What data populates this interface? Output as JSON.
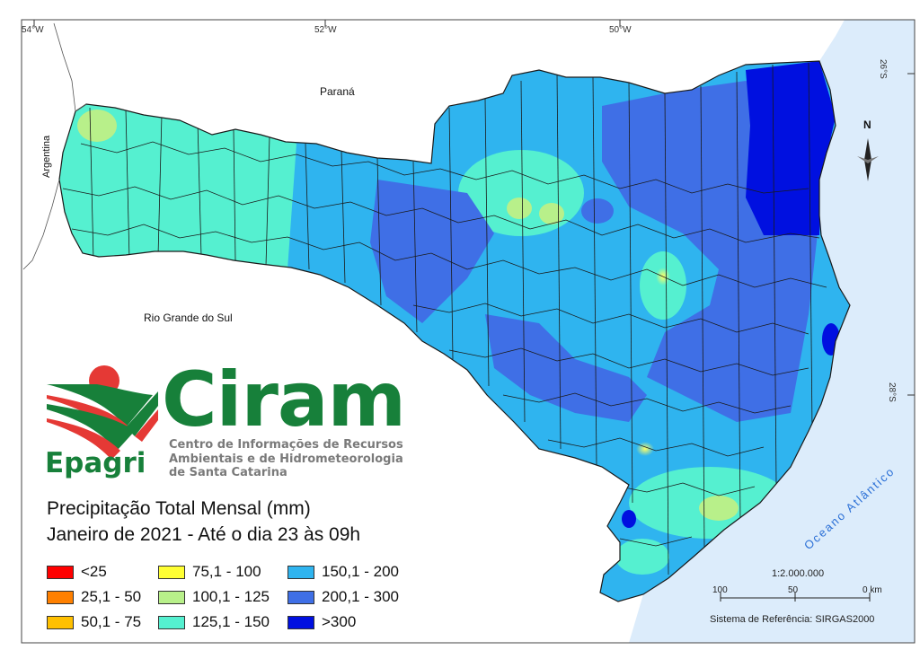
{
  "map": {
    "longitude_labels": [
      "54°W",
      "52°W",
      "50°W"
    ],
    "latitude_labels": [
      "26°S",
      "28°S"
    ],
    "neighbor_labels": {
      "parana": "Paraná",
      "rio_grande_do_sul": "Rio Grande do Sul",
      "argentina": "Argentina"
    },
    "ocean_label": "Oceano Atlântico",
    "north_arrow_label": "N",
    "colors": {
      "ocean": "#dcecfb",
      "land_outside": "#ffffff",
      "border": "#1a1a1a"
    }
  },
  "branding": {
    "ciram_wordmark": "Ciram",
    "ciram_description": "Centro de Informações de Recursos\nAmbientais e de Hidrometeorologia\nde Santa Catarina",
    "epagri_wordmark": "Epagri",
    "colors": {
      "green": "#17803a",
      "red": "#e53935",
      "gray": "#7a7a7a"
    }
  },
  "title": {
    "line1": "Precipitação Total Mensal (mm)",
    "line2": "Janeiro de 2021 - Até o dia 23 às 09h"
  },
  "legend": [
    {
      "label": "<25",
      "color": "#ff0000"
    },
    {
      "label": "25,1 - 50",
      "color": "#ff8000"
    },
    {
      "label": "50,1 - 75",
      "color": "#ffc000"
    },
    {
      "label": "75,1 - 100",
      "color": "#ffff33"
    },
    {
      "label": "100,1 - 125",
      "color": "#b8f08a"
    },
    {
      "label": "125,1 - 150",
      "color": "#55f0d0"
    },
    {
      "label": "150,1 - 200",
      "color": "#2fb4ef"
    },
    {
      "label": "200,1 - 300",
      "color": "#3f6fe6"
    },
    {
      "label": ">300",
      "color": "#0010e0"
    }
  ],
  "scale": {
    "ratio": "1:2.000.000",
    "ticks": [
      "100",
      "50",
      "0 km"
    ]
  },
  "reference_system": "Sistema de Referência: SIRGAS2000"
}
